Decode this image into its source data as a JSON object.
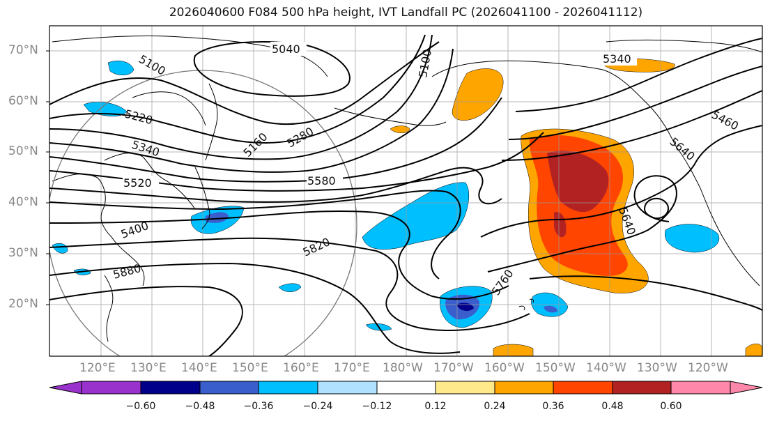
{
  "title": "2026040600 F084 500 hPa height, IVT Landfall PC (2026041100 - 2026041112)",
  "lat_labels": [
    "70°N",
    "60°N",
    "50°N",
    "40°N",
    "30°N",
    "20°N"
  ],
  "lon_labels": [
    "120°E",
    "130°E",
    "140°E",
    "150°E",
    "160°E",
    "170°E",
    "180°W",
    "170°W",
    "160°W",
    "150°W",
    "140°W",
    "130°W",
    "120°W"
  ],
  "contour_labels": [
    "5040",
    "5100",
    "5100",
    "5160",
    "5220",
    "5280",
    "5340",
    "5340",
    "5400",
    "5460",
    "5520",
    "5580",
    "5640",
    "5640",
    "5760",
    "5820",
    "5880"
  ],
  "colorbar": {
    "ticks": [
      "−0.60",
      "−0.48",
      "−0.36",
      "−0.24",
      "−0.12",
      "0.12",
      "0.24",
      "0.36",
      "0.48",
      "0.60"
    ],
    "colors": [
      "#9932cc",
      "#00008b",
      "#3a5fcd",
      "#00bfff",
      "#b0e2ff",
      "#ffffff",
      "#ffe98a",
      "#ffa500",
      "#ff4500",
      "#b22222",
      "#ff88aa"
    ]
  },
  "map_data": {
    "projection": "equirectangular",
    "extent": {
      "lon_min": 110,
      "lon_max": 250,
      "lat_min": 10,
      "lat_max": 75
    },
    "gridlines": true,
    "field": "500 hPa height contours with IVT landfall PC shading"
  }
}
